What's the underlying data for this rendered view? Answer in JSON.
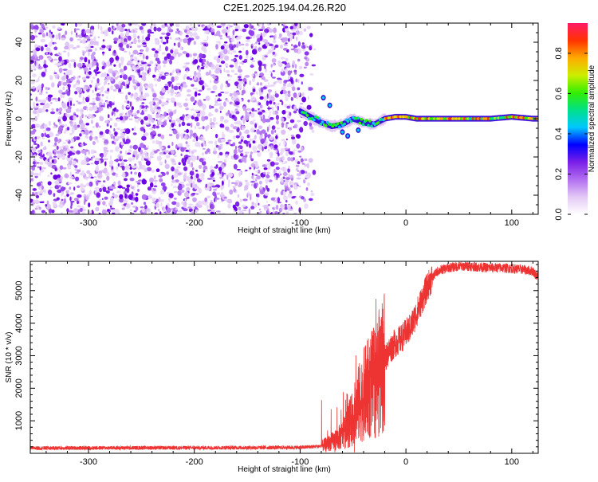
{
  "title": "C2E1.2025.194.04.26.R20",
  "chart_data": [
    {
      "id": "spectrogram",
      "type": "heatmap",
      "xlabel": "Height of straight line (km)",
      "ylabel": "Frequency (Hz)",
      "xlim": [
        -355,
        125
      ],
      "ylim": [
        -50,
        50
      ],
      "xticks": [
        -300,
        -200,
        -100,
        0,
        100
      ],
      "yticks": [
        -40,
        -20,
        0,
        20,
        40
      ],
      "noise_region_x": [
        -355,
        -88
      ],
      "signal_track": {
        "x": [
          -100,
          -90,
          -80,
          -70,
          -60,
          -50,
          -40,
          -30,
          -20,
          -10,
          0,
          10,
          20,
          40,
          60,
          80,
          100,
          120
        ],
        "y": [
          4,
          1,
          -2,
          -4,
          -3,
          0,
          -2,
          -3,
          0,
          1,
          1,
          0,
          0,
          0,
          0,
          0,
          1,
          0
        ]
      },
      "colorbar": {
        "label": "Normalized spectral amplitude",
        "range": [
          0,
          0.95
        ],
        "ticks": [
          0.0,
          0.2,
          0.4,
          0.6,
          0.8
        ],
        "colors": [
          "#ffffff",
          "#e3c9f5",
          "#b26ef0",
          "#7a1fe8",
          "#0000ff",
          "#00c8ff",
          "#00e08a",
          "#33ee00",
          "#ccee00",
          "#ffaa00",
          "#ff3300",
          "#ff1a66"
        ]
      },
      "grid": false
    },
    {
      "id": "snr",
      "type": "line",
      "xlabel": "Height of straight line (km)",
      "ylabel": "SNR (10 * v/v)",
      "xlim": [
        -355,
        125
      ],
      "ylim": [
        0,
        5900
      ],
      "xticks": [
        -300,
        -200,
        -100,
        0,
        100
      ],
      "yticks": [
        1000,
        2000,
        3000,
        4000,
        5000
      ],
      "color": "#ee3333",
      "series": [
        {
          "x": [
            -355,
            -300,
            -250,
            -200,
            -150,
            -100,
            -80,
            -70,
            -60,
            -55,
            -50,
            -45,
            -40,
            -35,
            -30,
            -25,
            -20,
            -15,
            -10,
            -5,
            0,
            5,
            10,
            15,
            20,
            25,
            30,
            40,
            50,
            60,
            70,
            80,
            90,
            100,
            110,
            120,
            125
          ],
          "y": [
            160,
            165,
            170,
            170,
            175,
            180,
            220,
            350,
            550,
            800,
            1100,
            1500,
            1800,
            2000,
            2200,
            2500,
            2900,
            3200,
            3400,
            3500,
            3700,
            3900,
            4300,
            4700,
            5100,
            5400,
            5600,
            5700,
            5750,
            5750,
            5720,
            5700,
            5700,
            5680,
            5650,
            5600,
            5400
          ]
        }
      ],
      "grid": false
    }
  ]
}
